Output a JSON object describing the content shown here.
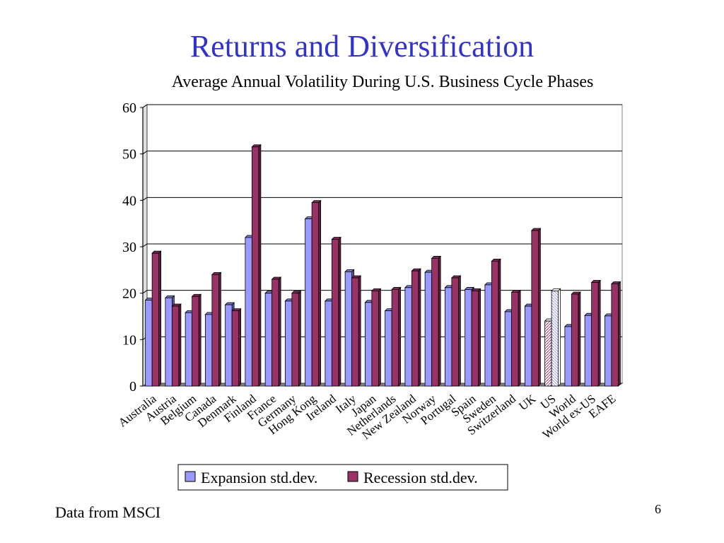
{
  "slide": {
    "title": "Returns and Diversification",
    "source_note": "Data from MSCI",
    "page_number": "6"
  },
  "colors": {
    "expansion": "#9999ff",
    "recession": "#993366",
    "title": "#3333cc"
  },
  "chart_data": {
    "type": "bar",
    "title": "Average Annual Volatility During U.S. Business Cycle Phases",
    "xlabel": "",
    "ylabel": "",
    "ylim": [
      0,
      60
    ],
    "yticks": [
      0,
      10,
      20,
      30,
      40,
      50,
      60
    ],
    "grid": true,
    "legend_position": "bottom",
    "categories": [
      "Australia",
      "Austria",
      "Belgium",
      "Canada",
      "Denmark",
      "Finland",
      "France",
      "Germany",
      "Hong Kong",
      "Ireland",
      "Italy",
      "Japan",
      "Netherlands",
      "New Zealand",
      "Norway",
      "Portugal",
      "Spain",
      "Sweden",
      "Switzerland",
      "UK",
      "US",
      "World",
      "World ex-US",
      "EAFE"
    ],
    "series": [
      {
        "name": "Expansion std.dev.",
        "values": [
          18.5,
          19,
          15.8,
          15.4,
          17.5,
          32,
          20,
          18.3,
          36,
          18.3,
          24.6,
          18,
          16.2,
          21.2,
          24.5,
          21.2,
          20.8,
          21.8,
          16,
          17.2,
          14,
          12.8,
          15.2,
          15.1
        ]
      },
      {
        "name": "Recession std.dev.",
        "values": [
          28.6,
          17.2,
          19.3,
          24,
          16.2,
          51.5,
          23,
          20,
          39.5,
          31.6,
          23.3,
          20.5,
          20.8,
          24.8,
          27.5,
          23.3,
          20.5,
          26.9,
          20.2,
          33.5,
          20.5,
          19.8,
          22.3,
          22
        ]
      }
    ],
    "highlight_category": "US"
  }
}
